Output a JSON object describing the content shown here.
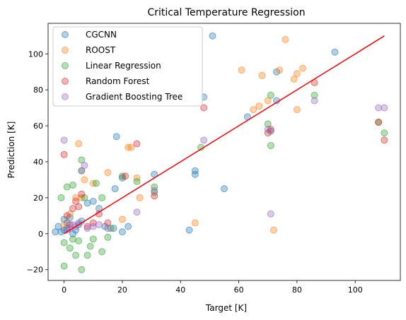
{
  "chart_data": {
    "type": "scatter",
    "title": "Critical Temperature Regression",
    "xlabel": "Target [K]",
    "ylabel": "Prediction [K]",
    "xlim": [
      -5.5,
      115.5
    ],
    "ylim": [
      -26,
      117
    ],
    "xticks": [
      0,
      20,
      40,
      60,
      80,
      100
    ],
    "yticks": [
      -20,
      0,
      20,
      40,
      60,
      80,
      100
    ],
    "xtick_labels": [
      "0",
      "20",
      "40",
      "60",
      "80",
      "100"
    ],
    "ytick_labels": [
      "−20",
      "0",
      "20",
      "40",
      "60",
      "80",
      "100"
    ],
    "grid": false,
    "legend_position": "top-left",
    "reference_line": {
      "x": [
        0,
        110
      ],
      "y": [
        0,
        110
      ],
      "color": "#ff0000"
    },
    "series": [
      {
        "name": "CGCNN",
        "color": "#1f77b4",
        "points": [
          [
            -3,
            1
          ],
          [
            -2,
            4
          ],
          [
            -1,
            1
          ],
          [
            0,
            2
          ],
          [
            0,
            8
          ],
          [
            1,
            3
          ],
          [
            1,
            6
          ],
          [
            2,
            9
          ],
          [
            3,
            0
          ],
          [
            4,
            2
          ],
          [
            5,
            5
          ],
          [
            6,
            7
          ],
          [
            8,
            17
          ],
          [
            10,
            18
          ],
          [
            12,
            14
          ],
          [
            14,
            4
          ],
          [
            17,
            3
          ],
          [
            17.5,
            25
          ],
          [
            18,
            54
          ],
          [
            20,
            1
          ],
          [
            20,
            31
          ],
          [
            22,
            4
          ],
          [
            31,
            33
          ],
          [
            43,
            2
          ],
          [
            45,
            33
          ],
          [
            45,
            35
          ],
          [
            48,
            76
          ],
          [
            51,
            110
          ],
          [
            55,
            25
          ],
          [
            63,
            65
          ],
          [
            71,
            57
          ],
          [
            73,
            90
          ],
          [
            73,
            74
          ],
          [
            93,
            101
          ]
        ]
      },
      {
        "name": "ROOST",
        "color": "#ff7f0e",
        "points": [
          [
            0,
            5
          ],
          [
            2,
            11
          ],
          [
            4,
            20
          ],
          [
            5,
            50
          ],
          [
            6,
            20
          ],
          [
            7,
            30
          ],
          [
            10,
            28
          ],
          [
            15,
            34
          ],
          [
            20,
            8
          ],
          [
            22,
            48
          ],
          [
            23,
            48
          ],
          [
            25,
            31
          ],
          [
            26,
            20
          ],
          [
            45,
            6
          ],
          [
            61,
            91
          ],
          [
            65,
            69
          ],
          [
            67,
            71
          ],
          [
            68,
            88
          ],
          [
            70,
            74
          ],
          [
            72,
            2
          ],
          [
            74,
            91
          ],
          [
            76,
            108
          ],
          [
            79,
            86
          ],
          [
            80,
            69
          ],
          [
            80,
            89
          ],
          [
            82,
            92
          ]
        ]
      },
      {
        "name": "Linear Regression",
        "color": "#2ca02c",
        "points": [
          [
            -1,
            20
          ],
          [
            0,
            -18
          ],
          [
            0,
            -5
          ],
          [
            1,
            26
          ],
          [
            2,
            -8
          ],
          [
            3,
            -3
          ],
          [
            3,
            27
          ],
          [
            4,
            -12
          ],
          [
            5,
            -4
          ],
          [
            6,
            -20
          ],
          [
            6,
            35
          ],
          [
            6,
            41
          ],
          [
            7,
            20
          ],
          [
            8,
            -12
          ],
          [
            9,
            -7
          ],
          [
            10,
            -3
          ],
          [
            11,
            28
          ],
          [
            13,
            -10
          ],
          [
            13,
            20
          ],
          [
            15,
            -2
          ],
          [
            16,
            3
          ],
          [
            20,
            32
          ],
          [
            25,
            29
          ],
          [
            31,
            26
          ],
          [
            31,
            23
          ],
          [
            47,
            48
          ],
          [
            70,
            61
          ],
          [
            71,
            77
          ],
          [
            71,
            49
          ],
          [
            86,
            77
          ],
          [
            108,
            62
          ],
          [
            110,
            56
          ]
        ]
      },
      {
        "name": "Random Forest",
        "color": "#d62728",
        "points": [
          [
            0,
            44
          ],
          [
            1,
            10
          ],
          [
            2,
            5
          ],
          [
            3,
            14
          ],
          [
            4,
            18
          ],
          [
            5,
            15
          ],
          [
            6,
            22
          ],
          [
            8,
            4
          ],
          [
            10,
            6
          ],
          [
            12,
            11
          ],
          [
            15,
            6
          ],
          [
            21,
            32
          ],
          [
            25,
            50
          ],
          [
            31,
            21
          ],
          [
            48,
            70
          ],
          [
            70,
            56
          ],
          [
            71,
            58
          ],
          [
            86,
            84
          ],
          [
            108,
            62
          ],
          [
            110,
            52
          ]
        ]
      },
      {
        "name": "Gradient Boosting Tree",
        "color": "#9467bd",
        "points": [
          [
            0,
            52
          ],
          [
            1,
            2
          ],
          [
            2,
            3
          ],
          [
            3,
            5
          ],
          [
            4,
            4
          ],
          [
            5,
            6
          ],
          [
            6,
            35
          ],
          [
            7,
            38
          ],
          [
            8,
            3
          ],
          [
            10,
            4
          ],
          [
            12,
            5
          ],
          [
            15,
            3
          ],
          [
            25,
            12
          ],
          [
            31,
            24
          ],
          [
            48,
            52
          ],
          [
            70,
            58
          ],
          [
            71,
            11
          ],
          [
            86,
            74
          ],
          [
            108,
            70
          ],
          [
            110,
            70
          ]
        ]
      }
    ]
  }
}
